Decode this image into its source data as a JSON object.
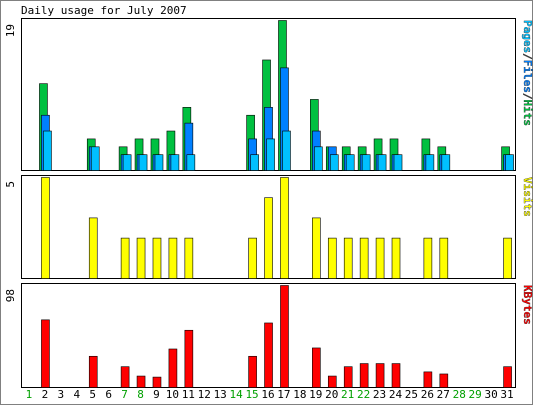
{
  "chart_data": {
    "type": "bar",
    "title": "Daily usage for July 2007",
    "days": [
      "1",
      "2",
      "3",
      "4",
      "5",
      "6",
      "7",
      "8",
      "9",
      "10",
      "11",
      "12",
      "13",
      "14",
      "15",
      "16",
      "17",
      "18",
      "19",
      "20",
      "21",
      "22",
      "23",
      "24",
      "25",
      "26",
      "27",
      "28",
      "29",
      "30",
      "31"
    ],
    "weekend_days": [
      1,
      7,
      8,
      14,
      15,
      21,
      22,
      28,
      29
    ],
    "panels": [
      {
        "name": "usage",
        "max_label": "19",
        "ymax": 19,
        "legend": [
          {
            "text": "Pages",
            "color": "#00C0FF"
          },
          {
            "text": "/",
            "color": "#404040"
          },
          {
            "text": "Files",
            "color": "#0080FF"
          },
          {
            "text": "/",
            "color": "#404040"
          },
          {
            "text": "Hits",
            "color": "#00C040"
          }
        ],
        "series": [
          {
            "name": "Hits",
            "color": "#00C040",
            "values": [
              0,
              11,
              0,
              0,
              4,
              0,
              3,
              4,
              4,
              5,
              8,
              0,
              0,
              0,
              7,
              14,
              19,
              0,
              9,
              3,
              3,
              3,
              4,
              4,
              0,
              4,
              3,
              0,
              0,
              0,
              3
            ]
          },
          {
            "name": "Files",
            "color": "#0080FF",
            "values": [
              0,
              7,
              0,
              0,
              3,
              0,
              2,
              2,
              2,
              2,
              6,
              0,
              0,
              0,
              4,
              8,
              13,
              0,
              5,
              3,
              2,
              2,
              2,
              2,
              0,
              2,
              2,
              0,
              0,
              0,
              2
            ]
          },
          {
            "name": "Pages",
            "color": "#00C0FF",
            "values": [
              0,
              5,
              0,
              0,
              3,
              0,
              2,
              2,
              2,
              2,
              2,
              0,
              0,
              0,
              2,
              4,
              5,
              0,
              3,
              2,
              2,
              2,
              2,
              2,
              0,
              2,
              2,
              0,
              0,
              0,
              2
            ]
          }
        ]
      },
      {
        "name": "visits",
        "max_label": "5",
        "ymax": 5,
        "legend": [
          {
            "text": "Visits",
            "color": "#FFFF00"
          }
        ],
        "series": [
          {
            "name": "Visits",
            "color": "#FFFF00",
            "values": [
              0,
              5,
              0,
              0,
              3,
              0,
              2,
              2,
              2,
              2,
              2,
              0,
              0,
              0,
              2,
              4,
              5,
              0,
              3,
              2,
              2,
              2,
              2,
              2,
              0,
              2,
              2,
              0,
              0,
              0,
              2
            ]
          }
        ]
      },
      {
        "name": "kbytes",
        "max_label": "98",
        "ymax": 98,
        "legend": [
          {
            "text": "KBytes",
            "color": "#FF0000"
          }
        ],
        "series": [
          {
            "name": "KBytes",
            "color": "#FF0000",
            "values": [
              0,
              65,
              0,
              0,
              30,
              0,
              20,
              11,
              10,
              37,
              55,
              0,
              0,
              0,
              30,
              62,
              98,
              0,
              38,
              11,
              20,
              23,
              23,
              23,
              0,
              15,
              13,
              0,
              0,
              0,
              20
            ]
          }
        ]
      }
    ]
  }
}
